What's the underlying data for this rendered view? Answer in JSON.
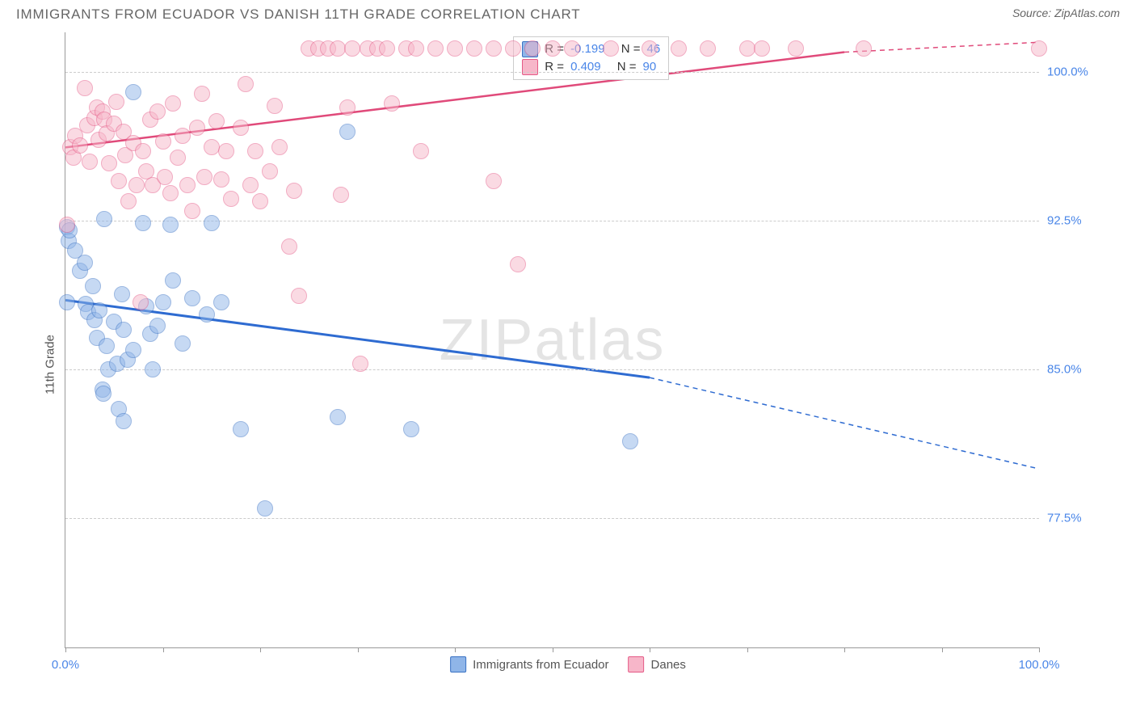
{
  "title": "IMMIGRANTS FROM ECUADOR VS DANISH 11TH GRADE CORRELATION CHART",
  "source": "Source: ZipAtlas.com",
  "watermark_a": "ZIP",
  "watermark_b": "atlas",
  "yaxis_label": "11th Grade",
  "chart": {
    "type": "scatter",
    "xlim": [
      0,
      100
    ],
    "ylim": [
      71,
      102
    ],
    "background_color": "#ffffff",
    "grid_color": "#cccccc",
    "grid_dash": true,
    "yticks": [
      {
        "v": 77.5,
        "label": "77.5%"
      },
      {
        "v": 85.0,
        "label": "85.0%"
      },
      {
        "v": 92.5,
        "label": "92.5%"
      },
      {
        "v": 100.0,
        "label": "100.0%"
      }
    ],
    "xticks_minor": [
      0,
      10,
      20,
      30,
      40,
      50,
      60,
      70,
      80,
      90,
      100
    ],
    "xtick_labels": [
      {
        "v": 0,
        "label": "0.0%"
      },
      {
        "v": 100,
        "label": "100.0%"
      }
    ],
    "marker_radius": 9,
    "marker_opacity": 0.5,
    "series": [
      {
        "name": "Immigrants from Ecuador",
        "color_fill": "#8fb5e8",
        "color_stroke": "#3a72c4",
        "R_label": "R = ",
        "R_value": "-0.199",
        "N_label": "N = ",
        "N_value": "46",
        "trend": {
          "x1": 0,
          "y1": 88.5,
          "x2": 60,
          "y2": 84.6,
          "x2_dash": 100,
          "y2_dash": 80.0,
          "stroke": "#2e6bd1",
          "width": 3
        },
        "points": [
          {
            "x": 0.2,
            "y": 92.2
          },
          {
            "x": 0.3,
            "y": 91.5
          },
          {
            "x": 0.4,
            "y": 92.0
          },
          {
            "x": 1.0,
            "y": 91.0
          },
          {
            "x": 1.5,
            "y": 90.0
          },
          {
            "x": 2.0,
            "y": 90.4
          },
          {
            "x": 2.1,
            "y": 88.3
          },
          {
            "x": 2.3,
            "y": 87.9
          },
          {
            "x": 2.8,
            "y": 89.2
          },
          {
            "x": 3.0,
            "y": 87.5
          },
          {
            "x": 3.2,
            "y": 86.6
          },
          {
            "x": 3.5,
            "y": 88.0
          },
          {
            "x": 3.8,
            "y": 84.0
          },
          {
            "x": 3.9,
            "y": 83.8
          },
          {
            "x": 4.0,
            "y": 92.6
          },
          {
            "x": 4.2,
            "y": 86.2
          },
          {
            "x": 4.4,
            "y": 85.0
          },
          {
            "x": 5.0,
            "y": 87.4
          },
          {
            "x": 5.3,
            "y": 85.3
          },
          {
            "x": 5.5,
            "y": 83.0
          },
          {
            "x": 5.8,
            "y": 88.8
          },
          {
            "x": 6.0,
            "y": 87.0
          },
          {
            "x": 6.0,
            "y": 82.4
          },
          {
            "x": 6.4,
            "y": 85.5
          },
          {
            "x": 7.0,
            "y": 86.0
          },
          {
            "x": 7.0,
            "y": 99.0
          },
          {
            "x": 8.0,
            "y": 92.4
          },
          {
            "x": 8.3,
            "y": 88.2
          },
          {
            "x": 8.7,
            "y": 86.8
          },
          {
            "x": 9.0,
            "y": 85.0
          },
          {
            "x": 9.5,
            "y": 87.2
          },
          {
            "x": 10.0,
            "y": 88.4
          },
          {
            "x": 10.8,
            "y": 92.3
          },
          {
            "x": 11.0,
            "y": 89.5
          },
          {
            "x": 12.0,
            "y": 86.3
          },
          {
            "x": 13.0,
            "y": 88.6
          },
          {
            "x": 14.5,
            "y": 87.8
          },
          {
            "x": 15.0,
            "y": 92.4
          },
          {
            "x": 16.0,
            "y": 88.4
          },
          {
            "x": 18.0,
            "y": 82.0
          },
          {
            "x": 20.5,
            "y": 78.0
          },
          {
            "x": 28.0,
            "y": 82.6
          },
          {
            "x": 29.0,
            "y": 97.0
          },
          {
            "x": 35.5,
            "y": 82.0
          },
          {
            "x": 58.0,
            "y": 81.4
          },
          {
            "x": 0.2,
            "y": 88.4
          }
        ]
      },
      {
        "name": "Danes",
        "color_fill": "#f7b6c9",
        "color_stroke": "#e55a86",
        "R_label": "R = ",
        "R_value": "0.409",
        "N_label": "N = ",
        "N_value": "90",
        "trend": {
          "x1": 0,
          "y1": 96.2,
          "x2": 80,
          "y2": 101.0,
          "x2_dash": 100,
          "y2_dash": 101.5,
          "stroke": "#e04a7a",
          "width": 2.5
        },
        "points": [
          {
            "x": 0.2,
            "y": 92.3
          },
          {
            "x": 0.5,
            "y": 96.2
          },
          {
            "x": 0.8,
            "y": 95.7
          },
          {
            "x": 1.0,
            "y": 96.8
          },
          {
            "x": 1.5,
            "y": 96.3
          },
          {
            "x": 2.0,
            "y": 99.2
          },
          {
            "x": 2.2,
            "y": 97.3
          },
          {
            "x": 2.5,
            "y": 95.5
          },
          {
            "x": 3.0,
            "y": 97.7
          },
          {
            "x": 3.2,
            "y": 98.2
          },
          {
            "x": 3.4,
            "y": 96.6
          },
          {
            "x": 3.8,
            "y": 98.0
          },
          {
            "x": 4.0,
            "y": 97.6
          },
          {
            "x": 4.2,
            "y": 96.9
          },
          {
            "x": 4.5,
            "y": 95.4
          },
          {
            "x": 5.0,
            "y": 97.4
          },
          {
            "x": 5.2,
            "y": 98.5
          },
          {
            "x": 5.5,
            "y": 94.5
          },
          {
            "x": 6.0,
            "y": 97.0
          },
          {
            "x": 6.1,
            "y": 95.8
          },
          {
            "x": 6.5,
            "y": 93.5
          },
          {
            "x": 7.0,
            "y": 96.4
          },
          {
            "x": 7.3,
            "y": 94.3
          },
          {
            "x": 7.7,
            "y": 88.4
          },
          {
            "x": 8.0,
            "y": 96.0
          },
          {
            "x": 8.3,
            "y": 95.0
          },
          {
            "x": 8.7,
            "y": 97.6
          },
          {
            "x": 9.0,
            "y": 94.3
          },
          {
            "x": 9.5,
            "y": 98.0
          },
          {
            "x": 10.0,
            "y": 96.5
          },
          {
            "x": 10.2,
            "y": 94.7
          },
          {
            "x": 10.8,
            "y": 93.9
          },
          {
            "x": 11.0,
            "y": 98.4
          },
          {
            "x": 11.5,
            "y": 95.7
          },
          {
            "x": 12.0,
            "y": 96.8
          },
          {
            "x": 12.5,
            "y": 94.3
          },
          {
            "x": 13.0,
            "y": 93.0
          },
          {
            "x": 13.5,
            "y": 97.2
          },
          {
            "x": 14.0,
            "y": 98.9
          },
          {
            "x": 14.3,
            "y": 94.7
          },
          {
            "x": 15.0,
            "y": 96.2
          },
          {
            "x": 15.5,
            "y": 97.5
          },
          {
            "x": 16.0,
            "y": 94.6
          },
          {
            "x": 16.5,
            "y": 96.0
          },
          {
            "x": 17.0,
            "y": 93.6
          },
          {
            "x": 18.0,
            "y": 97.2
          },
          {
            "x": 18.5,
            "y": 99.4
          },
          {
            "x": 19.0,
            "y": 94.3
          },
          {
            "x": 19.5,
            "y": 96.0
          },
          {
            "x": 20.0,
            "y": 93.5
          },
          {
            "x": 21.0,
            "y": 95.0
          },
          {
            "x": 21.5,
            "y": 98.3
          },
          {
            "x": 22.0,
            "y": 96.2
          },
          {
            "x": 23.0,
            "y": 91.2
          },
          {
            "x": 23.5,
            "y": 94.0
          },
          {
            "x": 24.0,
            "y": 88.7
          },
          {
            "x": 25.0,
            "y": 101.2
          },
          {
            "x": 26.0,
            "y": 101.2
          },
          {
            "x": 27.0,
            "y": 101.2
          },
          {
            "x": 28.0,
            "y": 101.2
          },
          {
            "x": 28.3,
            "y": 93.8
          },
          {
            "x": 29.0,
            "y": 98.2
          },
          {
            "x": 29.5,
            "y": 101.2
          },
          {
            "x": 30.3,
            "y": 85.3
          },
          {
            "x": 31.0,
            "y": 101.2
          },
          {
            "x": 32.0,
            "y": 101.2
          },
          {
            "x": 33.0,
            "y": 101.2
          },
          {
            "x": 33.5,
            "y": 98.4
          },
          {
            "x": 35.0,
            "y": 101.2
          },
          {
            "x": 36.0,
            "y": 101.2
          },
          {
            "x": 36.5,
            "y": 96.0
          },
          {
            "x": 38.0,
            "y": 101.2
          },
          {
            "x": 40.0,
            "y": 101.2
          },
          {
            "x": 42.0,
            "y": 101.2
          },
          {
            "x": 44.0,
            "y": 94.5
          },
          {
            "x": 44.0,
            "y": 101.2
          },
          {
            "x": 46.0,
            "y": 101.2
          },
          {
            "x": 46.5,
            "y": 90.3
          },
          {
            "x": 48.0,
            "y": 101.2
          },
          {
            "x": 50.0,
            "y": 101.2
          },
          {
            "x": 52.0,
            "y": 101.2
          },
          {
            "x": 56.0,
            "y": 101.2
          },
          {
            "x": 60.0,
            "y": 101.2
          },
          {
            "x": 63.0,
            "y": 101.2
          },
          {
            "x": 66.0,
            "y": 101.2
          },
          {
            "x": 70.0,
            "y": 101.2
          },
          {
            "x": 71.5,
            "y": 101.2
          },
          {
            "x": 75.0,
            "y": 101.2
          },
          {
            "x": 82.0,
            "y": 101.2
          },
          {
            "x": 100.0,
            "y": 101.2
          }
        ]
      }
    ]
  }
}
